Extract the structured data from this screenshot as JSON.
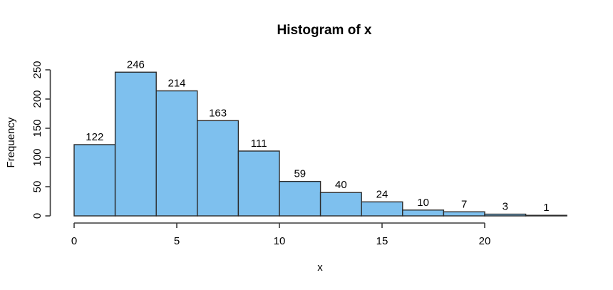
{
  "chart_data": {
    "type": "bar",
    "subtype": "histogram",
    "title": "Histogram of x",
    "xlabel": "x",
    "ylabel": "Frequency",
    "bin_start": 0,
    "bin_width": 2,
    "categories": [
      "0-2",
      "2-4",
      "4-6",
      "6-8",
      "8-10",
      "10-12",
      "12-14",
      "14-16",
      "16-18",
      "18-20",
      "20-22",
      "22-24"
    ],
    "values": [
      122,
      246,
      214,
      163,
      111,
      59,
      40,
      24,
      10,
      7,
      3,
      1
    ],
    "value_labels_shown": true,
    "x_ticks": [
      0,
      5,
      10,
      15,
      20
    ],
    "y_ticks": [
      0,
      50,
      100,
      150,
      200,
      250
    ],
    "xlim": [
      0,
      24
    ],
    "ylim": [
      0,
      250
    ],
    "grid": false,
    "legend": "none",
    "colors": {
      "bar_fill": "#7EC0EE",
      "bar_border": "#2B2B2B",
      "axis": "#3C3C3C",
      "text": "#000000",
      "background": "#FFFFFF"
    }
  }
}
